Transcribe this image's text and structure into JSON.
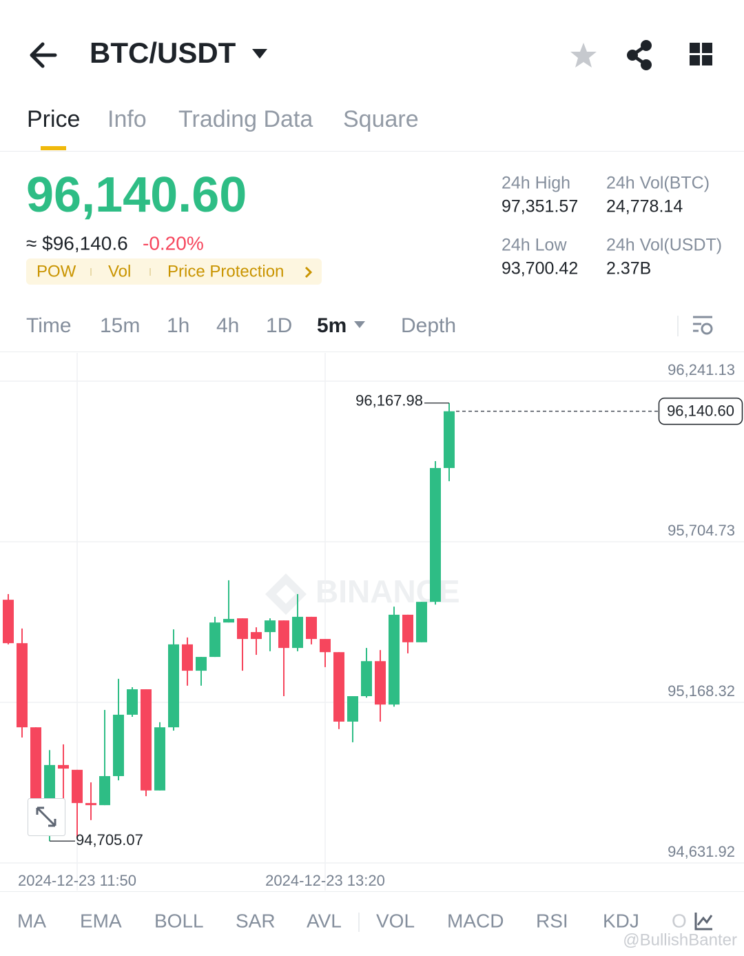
{
  "header": {
    "title": "BTC/USDT"
  },
  "tabs": [
    "Price",
    "Info",
    "Trading Data",
    "Square"
  ],
  "ticker": {
    "last": "96,140.60",
    "usd": "≈ $96,140.6",
    "change": "-0.20%",
    "badges": [
      "POW",
      "Vol",
      "Price Protection"
    ],
    "stats": [
      {
        "label": "24h High",
        "value": "97,351.57"
      },
      {
        "label": "24h Vol(BTC)",
        "value": "24,778.14"
      },
      {
        "label": "24h Low",
        "value": "93,700.42"
      },
      {
        "label": "24h Vol(USDT)",
        "value": "2.37B"
      }
    ]
  },
  "intervals": [
    "Time",
    "15m",
    "1h",
    "4h",
    "1D",
    "5m",
    "Depth"
  ],
  "chart_data": {
    "type": "candlestick",
    "categories": [
      null,
      null,
      null,
      null,
      null,
      "2024-12-23 11:50",
      null,
      null,
      null,
      null,
      null,
      null,
      null,
      null,
      null,
      null,
      null,
      null,
      null,
      null,
      null,
      null,
      null,
      "2024-12-23 13:20",
      null,
      null,
      null,
      null,
      null,
      null,
      null,
      null,
      null
    ],
    "open": [
      95511,
      95366,
      95085,
      94848,
      94959,
      94943,
      94832,
      94825,
      94922,
      95127,
      95212,
      94874,
      95085,
      95362,
      95274,
      95320,
      95435,
      95449,
      95403,
      95403,
      95442,
      95350,
      95454,
      95380,
      95336,
      95104,
      95189,
      95306,
      95161,
      95461,
      95369,
      95504,
      95951
    ],
    "high": [
      95530,
      95415,
      95085,
      95009,
      95028,
      94943,
      94901,
      95143,
      95247,
      95219,
      95212,
      95102,
      95412,
      95385,
      95320,
      95454,
      95576,
      95449,
      95419,
      95449,
      95442,
      95530,
      95454,
      95380,
      95336,
      95189,
      95350,
      95343,
      95488,
      95461,
      95504,
      95974,
      96167.98
    ],
    "low": [
      95362,
      95051,
      94844,
      94705.07,
      94844,
      94717,
      94775,
      94825,
      94908,
      95120,
      94855,
      94874,
      95074,
      95224,
      95224,
      95320,
      95435,
      95274,
      95327,
      95339,
      95189,
      95339,
      95362,
      95286,
      95079,
      95035,
      95184,
      95104,
      95154,
      95332,
      95369,
      95495,
      95907
    ],
    "close": [
      95366,
      95085,
      94848,
      94959,
      94947,
      94832,
      94825,
      94922,
      95127,
      95212,
      94874,
      95085,
      95362,
      95274,
      95320,
      95435,
      95447,
      95380,
      95380,
      95442,
      95350,
      95454,
      95380,
      95336,
      95104,
      95189,
      95306,
      95161,
      95461,
      95369,
      95504,
      95951,
      96140.6
    ],
    "up_color": "#2ebd85",
    "down_color": "#f6465d",
    "ylim": [
      94631.92,
      96335.5
    ],
    "yticks": [
      {
        "value": 96241.13,
        "label": "96,241.13"
      },
      {
        "value": 95704.73,
        "label": "95,704.73"
      },
      {
        "value": 95168.32,
        "label": "95,168.32"
      },
      {
        "value": 94631.92,
        "label": "94,631.92"
      }
    ],
    "grid": true,
    "high_label": "96,167.98",
    "low_label": "94,705.07",
    "last_label": "96,140.60"
  },
  "indicators": [
    "MA",
    "EMA",
    "BOLL",
    "SAR",
    "AVL",
    "VOL",
    "MACD",
    "RSI",
    "KDJ",
    "O"
  ],
  "watermark": "BINANCE",
  "credit": "@BullishBanter"
}
